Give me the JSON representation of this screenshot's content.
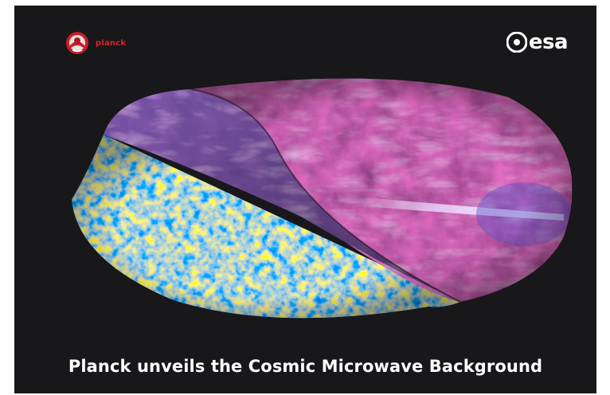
{
  "logos": {
    "mission_name": "planck",
    "agency_name": "esa"
  },
  "caption": "Planck unveils the Cosmic Microwave Background",
  "colors": {
    "background": "#181719",
    "planck_red": "#d8242c",
    "cmb_blue": "#1f74c9",
    "cmb_orange": "#e8a33c",
    "galaxy_magenta": "#7a2a6a",
    "galaxy_violet": "#5a4aa8"
  }
}
